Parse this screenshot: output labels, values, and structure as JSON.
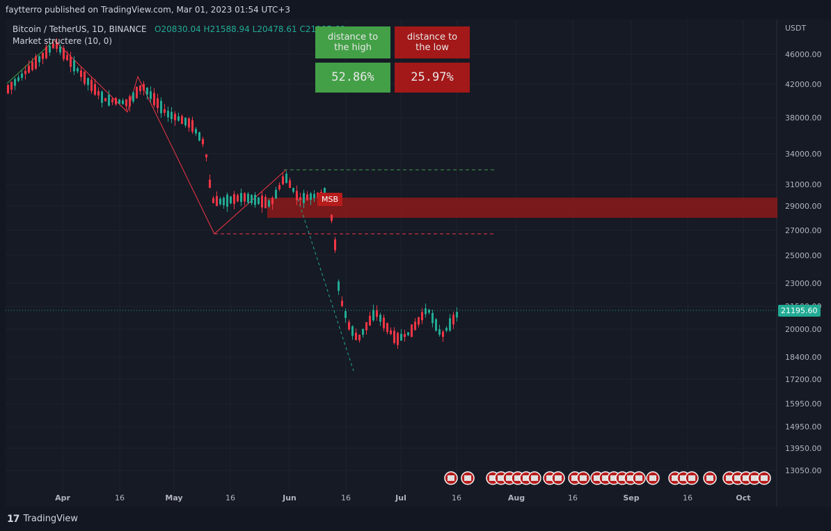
{
  "header": {
    "published": "faytterro published on TradingView.com, Mar 01, 2023 01:54 UTC+3"
  },
  "legend": {
    "symbol": "Bitcoin / TetherUS, 1D, BINANCE",
    "open": "O20830.04",
    "high": "H21588.94",
    "low": "L20478.61",
    "close": "C21195.60",
    "indicator": "Market structere (10, 0)"
  },
  "panel": {
    "high_label": "distance to the high",
    "low_label": "distance to the low",
    "high_value": "52.86%",
    "low_value": "25.97%"
  },
  "msb_label": "MSB",
  "current_price": "21195.60",
  "axis_currency": "USDT",
  "colors": {
    "up": "#22ab94",
    "down": "#f23645",
    "panel_green": "#43a047",
    "panel_red": "#a31818"
  },
  "chart_data": {
    "type": "candlestick",
    "y_ticks": [
      "46000.00",
      "42000.00",
      "38000.00",
      "34000.00",
      "31000.00",
      "29000.00",
      "27000.00",
      "25000.00",
      "23000.00",
      "21500.00",
      "20000.00",
      "18400.00",
      "17200.00",
      "15950.00",
      "14950.00",
      "13950.00",
      "13050.00"
    ],
    "x_ticks": [
      "Apr",
      "16",
      "May",
      "16",
      "Jun",
      "16",
      "Jul",
      "16",
      "Aug",
      "16",
      "Sep",
      "16",
      "Oct"
    ],
    "close": 21195.6
  },
  "footer": {
    "brand": "TradingView",
    "logo": "tv-logo-icon"
  }
}
